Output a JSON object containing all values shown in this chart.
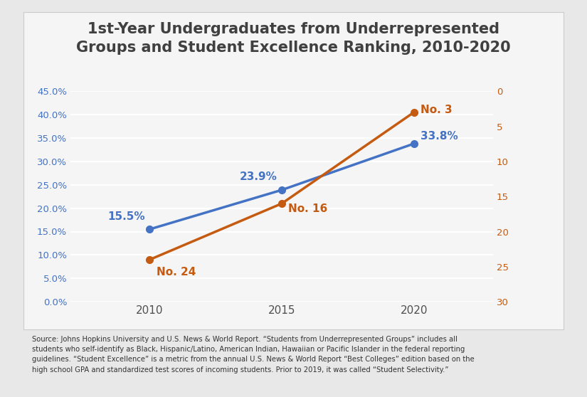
{
  "title_line1": "1st-Year Undergraduates from Underrepresented",
  "title_line2": "Groups and Student Excellence Ranking, 2010-2020",
  "title_color": "#404040",
  "title_fontsize": 15,
  "blue_years": [
    2010,
    2015,
    2020
  ],
  "blue_values": [
    0.155,
    0.239,
    0.338
  ],
  "blue_color": "#4472C4",
  "blue_labels": [
    "15.5%",
    "23.9%",
    "33.8%"
  ],
  "orange_years": [
    2010,
    2015,
    2020
  ],
  "orange_values": [
    24,
    16,
    3
  ],
  "orange_color": "#C55A11",
  "orange_labels": [
    "No. 24",
    "No. 16",
    "No. 3"
  ],
  "left_ylim": [
    0.0,
    0.45
  ],
  "left_yticks": [
    0.0,
    0.05,
    0.1,
    0.15,
    0.2,
    0.25,
    0.3,
    0.35,
    0.4,
    0.45
  ],
  "right_ylim": [
    30,
    0
  ],
  "right_yticks": [
    0,
    5,
    10,
    15,
    20,
    25,
    30
  ],
  "xticks": [
    2010,
    2015,
    2020
  ],
  "xlim": [
    2007,
    2023
  ],
  "outer_bg": "#E8E8E8",
  "inner_bg": "#F5F5F5",
  "chart_bg": "#F5F5F5",
  "grid_color": "#FFFFFF",
  "line_width": 2.5,
  "marker_size": 7
}
